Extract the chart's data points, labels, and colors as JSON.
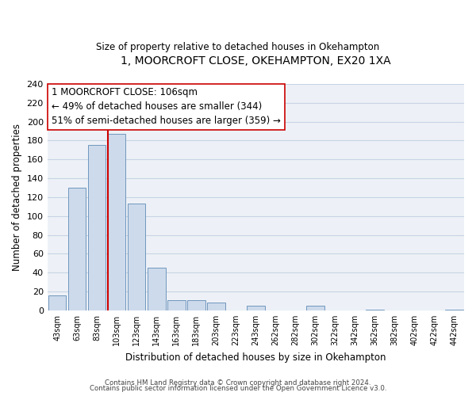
{
  "title": "1, MOORCROFT CLOSE, OKEHAMPTON, EX20 1XA",
  "subtitle": "Size of property relative to detached houses in Okehampton",
  "xlabel": "Distribution of detached houses by size in Okehampton",
  "ylabel": "Number of detached properties",
  "bar_labels": [
    "43sqm",
    "63sqm",
    "83sqm",
    "103sqm",
    "123sqm",
    "143sqm",
    "163sqm",
    "183sqm",
    "203sqm",
    "223sqm",
    "243sqm",
    "262sqm",
    "282sqm",
    "302sqm",
    "322sqm",
    "342sqm",
    "362sqm",
    "382sqm",
    "402sqm",
    "422sqm",
    "442sqm"
  ],
  "bar_heights": [
    16,
    130,
    175,
    187,
    113,
    45,
    11,
    11,
    8,
    0,
    5,
    0,
    0,
    5,
    0,
    0,
    1,
    0,
    0,
    0,
    1
  ],
  "bar_color": "#cddaeb",
  "bar_edge_color": "#7097be",
  "grid_color": "#c8d4e4",
  "bg_color": "#edf1f7",
  "vline_color": "#cc0000",
  "annotation_text": "1 MOORCROFT CLOSE: 106sqm\n← 49% of detached houses are smaller (344)\n51% of semi-detached houses are larger (359) →",
  "annotation_box_color": "#ffffff",
  "annotation_box_edge_color": "#cc0000",
  "ylim": [
    0,
    240
  ],
  "yticks": [
    0,
    20,
    40,
    60,
    80,
    100,
    120,
    140,
    160,
    180,
    200,
    220,
    240
  ],
  "footer1": "Contains HM Land Registry data © Crown copyright and database right 2024.",
  "footer2": "Contains public sector information licensed under the Open Government Licence v3.0."
}
